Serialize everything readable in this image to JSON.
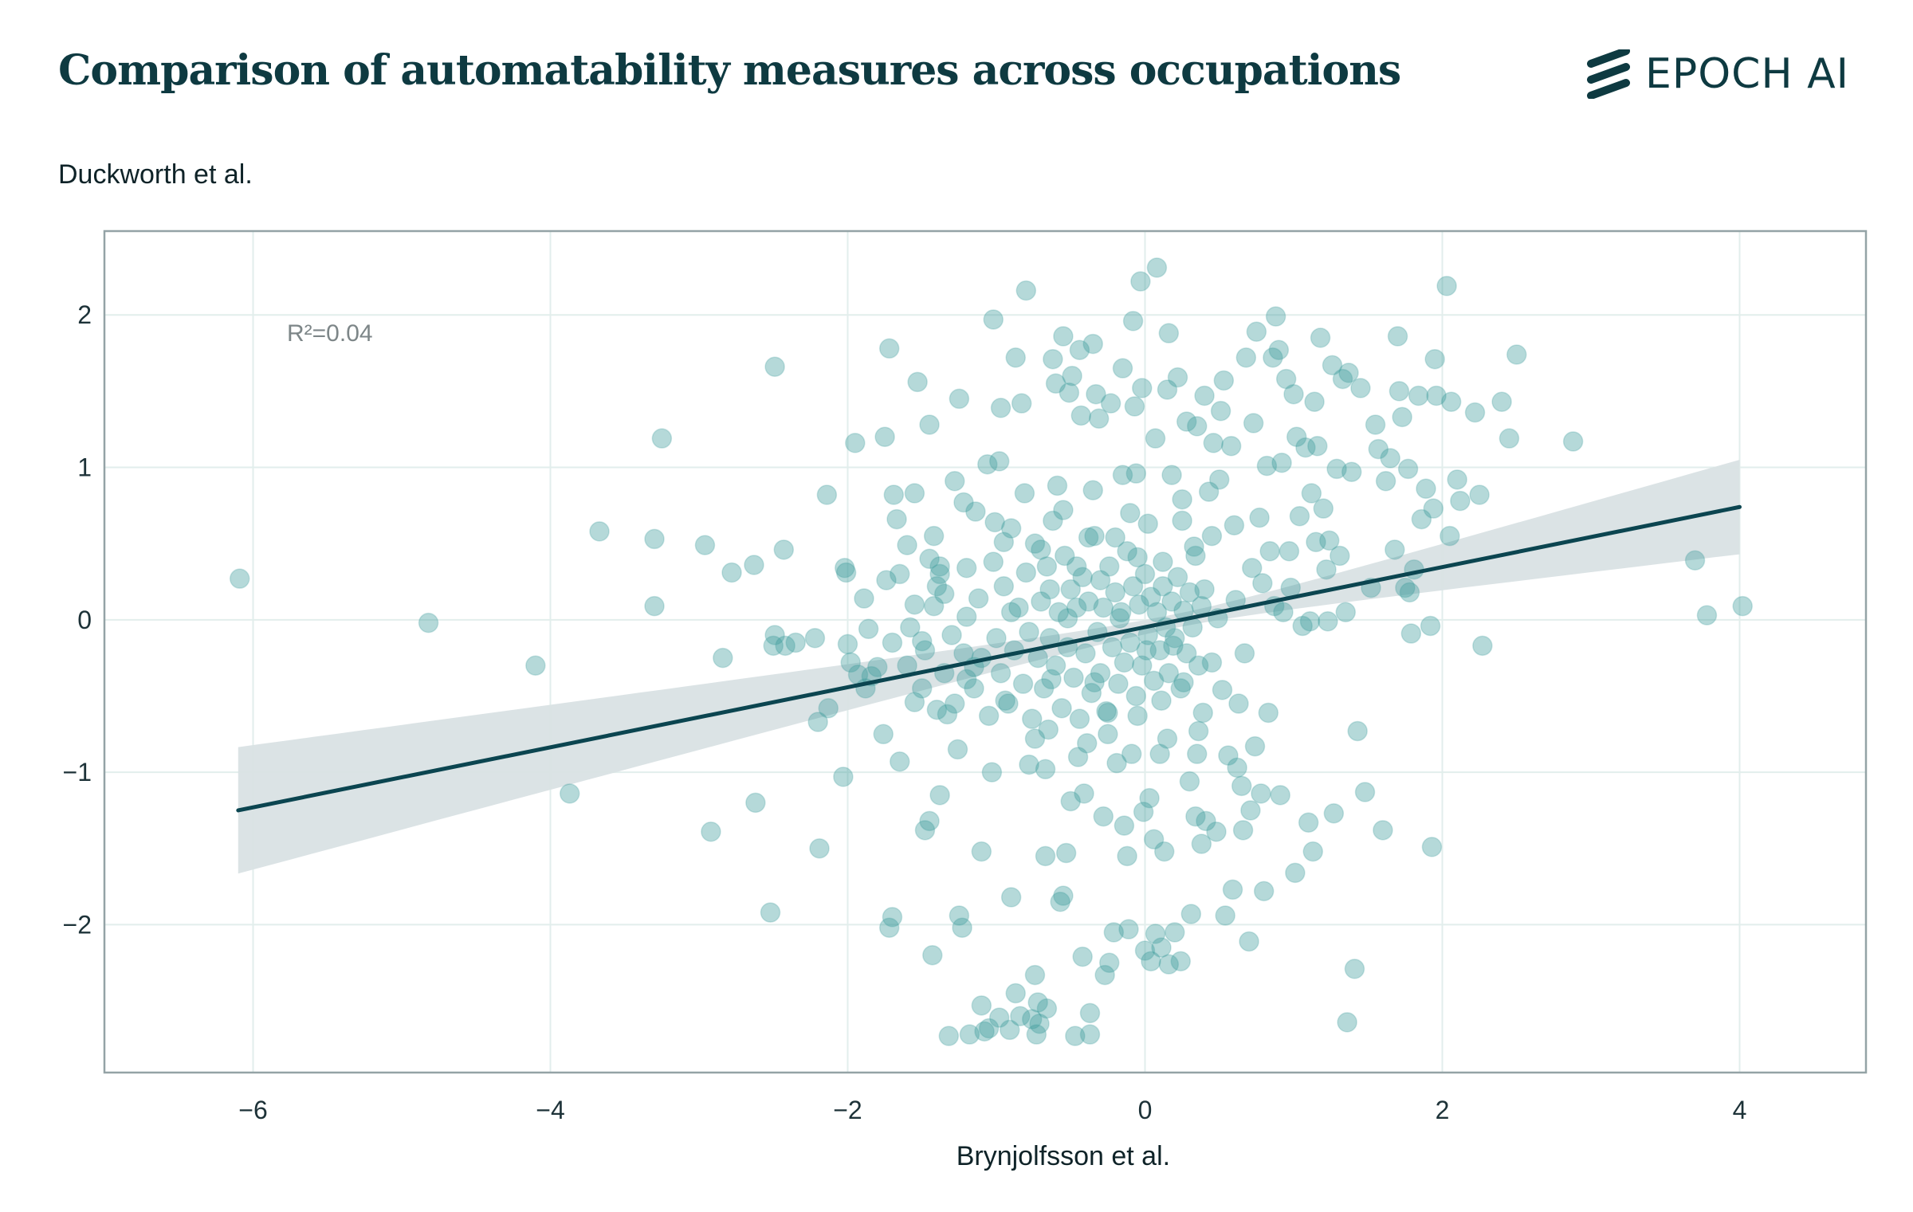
{
  "brand": {
    "name": "EPOCH AI",
    "icon": "epoch-stripes-icon",
    "color": "#0e3a41"
  },
  "chart_data": {
    "type": "scatter",
    "title": "Comparison of automatability measures across occupations",
    "xlabel": "Brynjolfsson et al.",
    "ylabel": "Duckworth et al.",
    "xlim": [
      -7,
      4.85
    ],
    "ylim": [
      -2.97,
      2.55
    ],
    "xticks": [
      -6,
      -4,
      -2,
      0,
      2,
      4
    ],
    "yticks": [
      -2,
      -1,
      0,
      1,
      2
    ],
    "tick_labels_x": [
      "−6",
      "−4",
      "−2",
      "0",
      "2",
      "4"
    ],
    "tick_labels_y": [
      "−2",
      "−1",
      "0",
      "1",
      "2"
    ],
    "grid": true,
    "annotation": "R²=0.04",
    "regression": {
      "x_start": -6.1,
      "y_start": -1.25,
      "x_end": 4.0,
      "y_end": 0.74,
      "ci_lower_start": -1.7,
      "ci_upper_start": -0.87,
      "ci_lower_end": 0.45,
      "ci_upper_end": 1.07
    },
    "colors": {
      "points": "#3d9a9a",
      "line": "#0b4550",
      "band": "#d9e2e4",
      "grid": "#e2eeec",
      "frame": "#94a3a6"
    },
    "points": [
      [
        -6.09,
        0.27
      ],
      [
        -4.82,
        -0.02
      ],
      [
        -4.1,
        -0.3
      ],
      [
        -3.87,
        -1.14
      ],
      [
        -3.67,
        0.58
      ],
      [
        -3.3,
        0.53
      ],
      [
        -3.3,
        0.09
      ],
      [
        -3.25,
        1.19
      ],
      [
        -2.96,
        0.49
      ],
      [
        -2.92,
        -1.39
      ],
      [
        -2.84,
        -0.25
      ],
      [
        -2.78,
        0.31
      ],
      [
        -2.63,
        0.36
      ],
      [
        -2.62,
        -1.2
      ],
      [
        -2.52,
        -1.92
      ],
      [
        -2.49,
        1.66
      ],
      [
        -2.49,
        -0.1
      ],
      [
        -2.5,
        -0.17
      ],
      [
        -2.43,
        0.46
      ],
      [
        -2.42,
        -0.17
      ],
      [
        -2.35,
        -0.15
      ],
      [
        -2.22,
        -0.12
      ],
      [
        -2.2,
        -0.67
      ],
      [
        -2.19,
        -1.5
      ],
      [
        -2.14,
        0.82
      ],
      [
        -2.13,
        -0.58
      ],
      [
        -2.03,
        -1.03
      ],
      [
        -2.02,
        0.34
      ],
      [
        -2.01,
        0.31
      ],
      [
        -2.0,
        -0.16
      ],
      [
        -1.98,
        -0.28
      ],
      [
        -1.95,
        1.16
      ],
      [
        -1.93,
        -0.36
      ],
      [
        -1.89,
        0.14
      ],
      [
        -1.88,
        -0.45
      ],
      [
        -1.86,
        -0.06
      ],
      [
        -1.84,
        -0.37
      ],
      [
        -1.8,
        -0.31
      ],
      [
        -1.76,
        -0.75
      ],
      [
        -1.75,
        1.2
      ],
      [
        -1.74,
        0.26
      ],
      [
        -1.72,
        1.78
      ],
      [
        -1.72,
        -2.02
      ],
      [
        -1.7,
        -1.95
      ],
      [
        -1.69,
        0.82
      ],
      [
        -1.67,
        0.66
      ],
      [
        -1.65,
        -0.93
      ],
      [
        -1.6,
        0.49
      ],
      [
        -1.55,
        0.83
      ],
      [
        -1.55,
        -0.54
      ],
      [
        -1.53,
        1.56
      ],
      [
        -1.5,
        -0.14
      ],
      [
        -1.48,
        -1.38
      ],
      [
        -1.45,
        -1.32
      ],
      [
        -1.43,
        -2.2
      ],
      [
        -1.45,
        1.28
      ],
      [
        -1.42,
        0.09
      ],
      [
        -1.4,
        -0.59
      ],
      [
        -1.38,
        0.35
      ],
      [
        -1.38,
        -1.15
      ],
      [
        -1.35,
        0.17
      ],
      [
        -1.32,
        -2.73
      ],
      [
        -1.28,
        0.91
      ],
      [
        -1.26,
        -0.85
      ],
      [
        -1.25,
        1.45
      ],
      [
        -1.25,
        -1.94
      ],
      [
        -1.23,
        -2.02
      ],
      [
        -1.22,
        0.77
      ],
      [
        -1.2,
        -0.39
      ],
      [
        -1.2,
        0.34
      ],
      [
        -1.18,
        -2.72
      ],
      [
        -1.15,
        -0.31
      ],
      [
        -1.14,
        0.71
      ],
      [
        -1.1,
        -1.52
      ],
      [
        -1.1,
        -2.53
      ],
      [
        -1.08,
        -2.7
      ],
      [
        -1.06,
        1.02
      ],
      [
        -1.05,
        -2.68
      ],
      [
        -1.03,
        -1.0
      ],
      [
        -1.02,
        1.97
      ],
      [
        -1.01,
        0.64
      ],
      [
        -0.98,
        -2.61
      ],
      [
        -0.98,
        1.04
      ],
      [
        -0.97,
        1.39
      ],
      [
        -0.95,
        0.51
      ],
      [
        -0.94,
        -0.53
      ],
      [
        -0.91,
        -2.69
      ],
      [
        -0.9,
        -1.82
      ],
      [
        -0.9,
        0.05
      ],
      [
        -0.87,
        -2.45
      ],
      [
        -0.87,
        1.72
      ],
      [
        -0.84,
        -2.6
      ],
      [
        -0.83,
        1.42
      ],
      [
        -0.81,
        0.83
      ],
      [
        -0.8,
        2.16
      ],
      [
        -0.78,
        -0.95
      ],
      [
        -0.76,
        -2.62
      ],
      [
        -0.74,
        -2.33
      ],
      [
        -0.74,
        -0.78
      ],
      [
        -0.73,
        -2.72
      ],
      [
        -0.72,
        -2.51
      ],
      [
        -0.71,
        -2.65
      ],
      [
        -0.7,
        0.46
      ],
      [
        -0.67,
        -1.55
      ],
      [
        -0.67,
        -0.98
      ],
      [
        -0.66,
        -2.55
      ],
      [
        -0.64,
        0.2
      ],
      [
        -0.63,
        -0.39
      ],
      [
        -0.62,
        1.71
      ],
      [
        -0.6,
        1.55
      ],
      [
        -0.59,
        0.88
      ],
      [
        -0.57,
        -1.85
      ],
      [
        -0.55,
        1.86
      ],
      [
        -0.55,
        -1.81
      ],
      [
        -0.53,
        -1.53
      ],
      [
        -0.52,
        0.01
      ],
      [
        -0.51,
        1.49
      ],
      [
        -0.5,
        -1.19
      ],
      [
        -0.49,
        1.6
      ],
      [
        -0.47,
        -2.73
      ],
      [
        -0.46,
        0.35
      ],
      [
        -0.44,
        1.77
      ],
      [
        -0.43,
        1.34
      ],
      [
        -0.42,
        -2.21
      ],
      [
        -0.41,
        -1.14
      ],
      [
        -0.39,
        -0.81
      ],
      [
        -0.38,
        0.54
      ],
      [
        -0.37,
        -2.58
      ],
      [
        -0.37,
        -2.72
      ],
      [
        -0.35,
        1.81
      ],
      [
        -0.34,
        -0.41
      ],
      [
        -0.33,
        1.48
      ],
      [
        -0.31,
        1.32
      ],
      [
        -0.3,
        0.26
      ],
      [
        -0.28,
        -1.29
      ],
      [
        -0.27,
        -2.33
      ],
      [
        -0.25,
        -0.61
      ],
      [
        -0.24,
        -2.25
      ],
      [
        -0.23,
        1.42
      ],
      [
        -0.21,
        -2.05
      ],
      [
        -0.2,
        0.54
      ],
      [
        -0.19,
        -0.94
      ],
      [
        -0.17,
        0.01
      ],
      [
        -0.15,
        1.65
      ],
      [
        -0.14,
        -1.35
      ],
      [
        -0.12,
        -1.55
      ],
      [
        -0.11,
        -2.03
      ],
      [
        -0.1,
        0.7
      ],
      [
        -0.09,
        -0.88
      ],
      [
        -0.08,
        1.96
      ],
      [
        -0.07,
        1.4
      ],
      [
        -0.06,
        0.96
      ],
      [
        -0.05,
        0.41
      ],
      [
        -0.05,
        -0.63
      ],
      [
        -0.03,
        2.22
      ],
      [
        -0.02,
        1.52
      ],
      [
        -0.01,
        -1.26
      ],
      [
        0.0,
        -2.17
      ],
      [
        0.01,
        -0.2
      ],
      [
        0.02,
        0.63
      ],
      [
        0.03,
        -1.17
      ],
      [
        0.04,
        -2.24
      ],
      [
        0.06,
        -1.44
      ],
      [
        0.07,
        1.19
      ],
      [
        0.07,
        -2.06
      ],
      [
        0.08,
        2.31
      ],
      [
        0.1,
        -0.88
      ],
      [
        0.11,
        -2.15
      ],
      [
        0.11,
        -0.53
      ],
      [
        0.12,
        0.22
      ],
      [
        0.13,
        -1.52
      ],
      [
        0.15,
        1.51
      ],
      [
        0.16,
        -2.26
      ],
      [
        0.16,
        1.88
      ],
      [
        0.18,
        0.95
      ],
      [
        0.19,
        -0.17
      ],
      [
        0.2,
        -2.05
      ],
      [
        0.22,
        1.59
      ],
      [
        0.24,
        -2.24
      ],
      [
        0.25,
        0.79
      ],
      [
        0.26,
        -0.41
      ],
      [
        0.28,
        1.3
      ],
      [
        0.3,
        -1.06
      ],
      [
        0.31,
        -1.93
      ],
      [
        0.33,
        0.48
      ],
      [
        0.34,
        -1.29
      ],
      [
        0.35,
        1.27
      ],
      [
        0.36,
        -0.73
      ],
      [
        0.38,
        -1.47
      ],
      [
        0.39,
        -0.61
      ],
      [
        0.4,
        1.47
      ],
      [
        0.4,
        0.2
      ],
      [
        0.41,
        -1.32
      ],
      [
        0.43,
        0.84
      ],
      [
        0.45,
        -0.28
      ],
      [
        0.46,
        1.16
      ],
      [
        0.48,
        -1.39
      ],
      [
        0.49,
        0.01
      ],
      [
        0.5,
        0.92
      ],
      [
        0.51,
        1.37
      ],
      [
        0.52,
        -0.46
      ],
      [
        0.53,
        1.57
      ],
      [
        0.54,
        -1.94
      ],
      [
        0.56,
        -0.89
      ],
      [
        0.58,
        1.14
      ],
      [
        0.59,
        -1.77
      ],
      [
        0.6,
        0.62
      ],
      [
        0.61,
        0.13
      ],
      [
        0.62,
        -0.97
      ],
      [
        0.63,
        -0.55
      ],
      [
        0.65,
        -1.09
      ],
      [
        0.66,
        -1.38
      ],
      [
        0.67,
        -0.22
      ],
      [
        0.68,
        1.72
      ],
      [
        0.7,
        -2.11
      ],
      [
        0.71,
        -1.25
      ],
      [
        0.72,
        0.34
      ],
      [
        0.73,
        1.29
      ],
      [
        0.74,
        -0.83
      ],
      [
        0.75,
        1.89
      ],
      [
        0.77,
        0.67
      ],
      [
        0.78,
        -1.14
      ],
      [
        0.79,
        0.24
      ],
      [
        0.8,
        -1.78
      ],
      [
        0.82,
        1.01
      ],
      [
        0.83,
        -0.61
      ],
      [
        0.84,
        0.45
      ],
      [
        0.86,
        1.72
      ],
      [
        0.87,
        0.09
      ],
      [
        0.88,
        1.99
      ],
      [
        0.9,
        1.77
      ],
      [
        0.91,
        -1.15
      ],
      [
        0.92,
        1.03
      ],
      [
        0.93,
        0.05
      ],
      [
        0.95,
        1.58
      ],
      [
        0.97,
        0.45
      ],
      [
        0.98,
        0.21
      ],
      [
        1.0,
        1.48
      ],
      [
        1.01,
        -1.66
      ],
      [
        1.02,
        1.2
      ],
      [
        1.04,
        0.68
      ],
      [
        1.06,
        -0.04
      ],
      [
        1.08,
        1.13
      ],
      [
        1.1,
        -1.33
      ],
      [
        1.11,
        -0.01
      ],
      [
        1.12,
        0.83
      ],
      [
        1.13,
        -1.52
      ],
      [
        1.14,
        1.43
      ],
      [
        1.15,
        0.51
      ],
      [
        1.16,
        1.14
      ],
      [
        1.18,
        1.85
      ],
      [
        1.2,
        0.73
      ],
      [
        1.22,
        0.33
      ],
      [
        1.23,
        -0.01
      ],
      [
        1.24,
        0.52
      ],
      [
        1.26,
        1.67
      ],
      [
        1.27,
        -1.27
      ],
      [
        1.29,
        0.99
      ],
      [
        1.31,
        0.42
      ],
      [
        1.33,
        1.58
      ],
      [
        1.35,
        0.05
      ],
      [
        1.36,
        -2.64
      ],
      [
        1.37,
        1.62
      ],
      [
        1.39,
        0.97
      ],
      [
        1.41,
        -2.29
      ],
      [
        1.43,
        -0.73
      ],
      [
        1.45,
        1.52
      ],
      [
        1.48,
        -1.13
      ],
      [
        1.52,
        0.21
      ],
      [
        1.55,
        1.28
      ],
      [
        1.57,
        1.12
      ],
      [
        1.6,
        -1.38
      ],
      [
        1.62,
        0.91
      ],
      [
        1.65,
        1.06
      ],
      [
        1.68,
        0.46
      ],
      [
        1.7,
        1.86
      ],
      [
        1.71,
        1.5
      ],
      [
        1.73,
        1.33
      ],
      [
        1.75,
        0.21
      ],
      [
        1.77,
        0.99
      ],
      [
        1.78,
        0.18
      ],
      [
        1.79,
        -0.09
      ],
      [
        1.81,
        0.33
      ],
      [
        1.84,
        1.47
      ],
      [
        1.86,
        0.66
      ],
      [
        1.89,
        0.86
      ],
      [
        1.92,
        -0.04
      ],
      [
        1.93,
        -1.49
      ],
      [
        1.94,
        0.73
      ],
      [
        1.95,
        1.71
      ],
      [
        1.96,
        1.47
      ],
      [
        2.03,
        2.19
      ],
      [
        2.05,
        0.55
      ],
      [
        2.06,
        1.43
      ],
      [
        2.1,
        0.92
      ],
      [
        2.12,
        0.78
      ],
      [
        2.22,
        1.36
      ],
      [
        2.25,
        0.82
      ],
      [
        2.27,
        -0.17
      ],
      [
        2.4,
        1.43
      ],
      [
        2.45,
        1.19
      ],
      [
        2.5,
        1.74
      ],
      [
        2.88,
        1.17
      ],
      [
        3.7,
        0.39
      ],
      [
        3.78,
        0.03
      ],
      [
        4.02,
        0.09
      ],
      [
        -1.4,
        0.22
      ],
      [
        -1.38,
        0.3
      ],
      [
        -1.35,
        -0.35
      ],
      [
        -1.3,
        -0.1
      ],
      [
        -1.28,
        -0.55
      ],
      [
        -1.22,
        -0.22
      ],
      [
        -1.2,
        0.02
      ],
      [
        -1.15,
        -0.45
      ],
      [
        -1.12,
        0.14
      ],
      [
        -1.1,
        -0.25
      ],
      [
        -1.05,
        -0.63
      ],
      [
        -1.02,
        0.38
      ],
      [
        -1.0,
        -0.12
      ],
      [
        -0.97,
        -0.35
      ],
      [
        -0.95,
        0.22
      ],
      [
        -0.92,
        -0.55
      ],
      [
        -0.9,
        0.6
      ],
      [
        -0.88,
        -0.2
      ],
      [
        -0.85,
        0.08
      ],
      [
        -0.82,
        -0.42
      ],
      [
        -0.8,
        0.31
      ],
      [
        -0.78,
        -0.08
      ],
      [
        -0.76,
        -0.65
      ],
      [
        -0.74,
        0.5
      ],
      [
        -0.72,
        -0.25
      ],
      [
        -0.7,
        0.12
      ],
      [
        -0.68,
        -0.45
      ],
      [
        -0.66,
        0.35
      ],
      [
        -0.64,
        -0.12
      ],
      [
        -0.62,
        0.65
      ],
      [
        -0.6,
        -0.3
      ],
      [
        -0.58,
        0.05
      ],
      [
        -0.56,
        -0.58
      ],
      [
        -0.54,
        0.42
      ],
      [
        -0.52,
        -0.18
      ],
      [
        -0.5,
        0.2
      ],
      [
        -0.48,
        -0.38
      ],
      [
        -0.46,
        0.08
      ],
      [
        -0.44,
        -0.65
      ],
      [
        -0.42,
        0.28
      ],
      [
        -0.4,
        -0.22
      ],
      [
        -0.38,
        0.12
      ],
      [
        -0.36,
        -0.48
      ],
      [
        -0.34,
        0.55
      ],
      [
        -0.32,
        -0.08
      ],
      [
        -0.3,
        -0.35
      ],
      [
        -0.28,
        0.08
      ],
      [
        -0.26,
        -0.6
      ],
      [
        -0.24,
        0.35
      ],
      [
        -0.22,
        -0.18
      ],
      [
        -0.2,
        0.18
      ],
      [
        -0.18,
        -0.42
      ],
      [
        -0.16,
        0.05
      ],
      [
        -0.14,
        -0.28
      ],
      [
        -0.12,
        0.45
      ],
      [
        -0.1,
        -0.15
      ],
      [
        -0.08,
        0.22
      ],
      [
        -0.06,
        -0.5
      ],
      [
        -0.04,
        0.1
      ],
      [
        -0.02,
        -0.3
      ],
      [
        0.0,
        0.3
      ],
      [
        0.02,
        -0.1
      ],
      [
        0.04,
        0.15
      ],
      [
        0.06,
        -0.4
      ],
      [
        0.08,
        0.05
      ],
      [
        0.1,
        -0.2
      ],
      [
        0.12,
        0.38
      ],
      [
        0.14,
        -0.05
      ],
      [
        0.16,
        -0.35
      ],
      [
        0.18,
        0.12
      ],
      [
        0.2,
        -0.12
      ],
      [
        0.22,
        0.28
      ],
      [
        0.24,
        -0.45
      ],
      [
        0.26,
        0.06
      ],
      [
        0.28,
        -0.22
      ],
      [
        0.3,
        0.18
      ],
      [
        0.32,
        -0.05
      ],
      [
        0.34,
        0.42
      ],
      [
        0.36,
        -0.3
      ],
      [
        0.38,
        0.09
      ],
      [
        -1.6,
        -0.3
      ],
      [
        -1.55,
        0.1
      ],
      [
        -1.5,
        -0.45
      ],
      [
        -1.45,
        0.4
      ],
      [
        -1.7,
        -0.15
      ],
      [
        -1.65,
        0.3
      ],
      [
        -1.58,
        -0.05
      ],
      [
        -1.48,
        -0.2
      ],
      [
        -1.42,
        0.55
      ],
      [
        -1.33,
        -0.62
      ],
      [
        -0.15,
        0.95
      ],
      [
        -0.35,
        0.85
      ],
      [
        -0.55,
        0.72
      ],
      [
        0.25,
        0.65
      ],
      [
        0.45,
        0.55
      ],
      [
        -0.25,
        -0.75
      ],
      [
        -0.45,
        -0.9
      ],
      [
        0.15,
        -0.78
      ],
      [
        0.35,
        -0.88
      ],
      [
        -0.65,
        -0.72
      ]
    ]
  }
}
